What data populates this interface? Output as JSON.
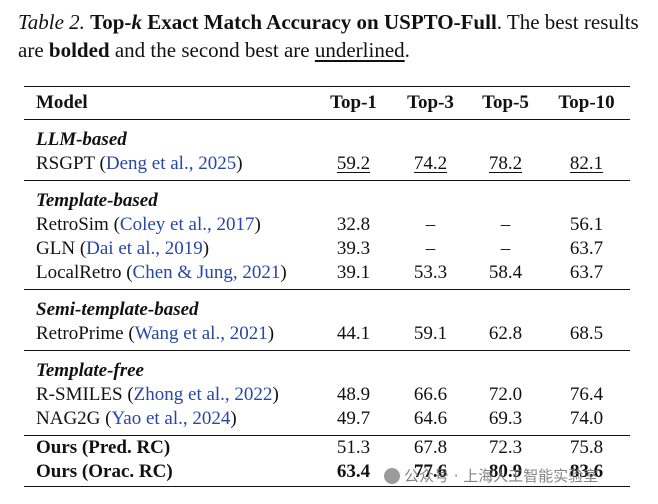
{
  "caption": {
    "label": "Table 2.",
    "title_prefix": "Top-",
    "title_var": "k",
    "title_rest": " Exact Match Accuracy on USPTO-Full",
    "sentence1": ". The best results are ",
    "bold_word": "bolded",
    "sentence2": " and the second best are ",
    "underlined_word": "underlined",
    "end": "."
  },
  "table": {
    "columns": [
      "Model",
      "Top-1",
      "Top-3",
      "Top-5",
      "Top-10"
    ],
    "groups": [
      {
        "name": "LLM-based",
        "rows": [
          {
            "model": "RSGPT",
            "cite": "Deng et al., 2025",
            "values": [
              "59.2",
              "74.2",
              "78.2",
              "82.1"
            ],
            "underlined": [
              true,
              true,
              true,
              true
            ]
          }
        ]
      },
      {
        "name": "Template-based",
        "rows": [
          {
            "model": "RetroSim",
            "cite": "Coley et al., 2017",
            "values": [
              "32.8",
              "–",
              "–",
              "56.1"
            ]
          },
          {
            "model": "GLN",
            "cite": "Dai et al., 2019",
            "values": [
              "39.3",
              "–",
              "–",
              "63.7"
            ]
          },
          {
            "model": "LocalRetro",
            "cite": "Chen & Jung, 2021",
            "values": [
              "39.1",
              "53.3",
              "58.4",
              "63.7"
            ]
          }
        ]
      },
      {
        "name": "Semi-template-based",
        "rows": [
          {
            "model": "RetroPrime",
            "cite": "Wang et al., 2021",
            "values": [
              "44.1",
              "59.1",
              "62.8",
              "68.5"
            ]
          }
        ]
      },
      {
        "name": "Template-free",
        "rows": [
          {
            "model": "R-SMILES",
            "cite": "Zhong et al., 2022",
            "values": [
              "48.9",
              "66.6",
              "72.0",
              "76.4"
            ]
          },
          {
            "model": "NAG2G",
            "cite": "Yao et al., 2024",
            "values": [
              "49.7",
              "64.6",
              "69.3",
              "74.0"
            ]
          }
        ]
      }
    ],
    "ours": [
      {
        "model": "Ours (Pred. RC)",
        "values": [
          "51.3",
          "67.8",
          "72.3",
          "75.8"
        ]
      },
      {
        "model": "Ours (Orac. RC)",
        "values": [
          "63.4",
          "77.6",
          "80.9",
          "83.6"
        ],
        "bold": [
          true,
          true,
          true,
          true
        ]
      }
    ]
  },
  "watermark": {
    "text": "公众号 · 上海人工智能实验室"
  },
  "colors": {
    "citation": "#2547a8",
    "text": "#111111"
  }
}
